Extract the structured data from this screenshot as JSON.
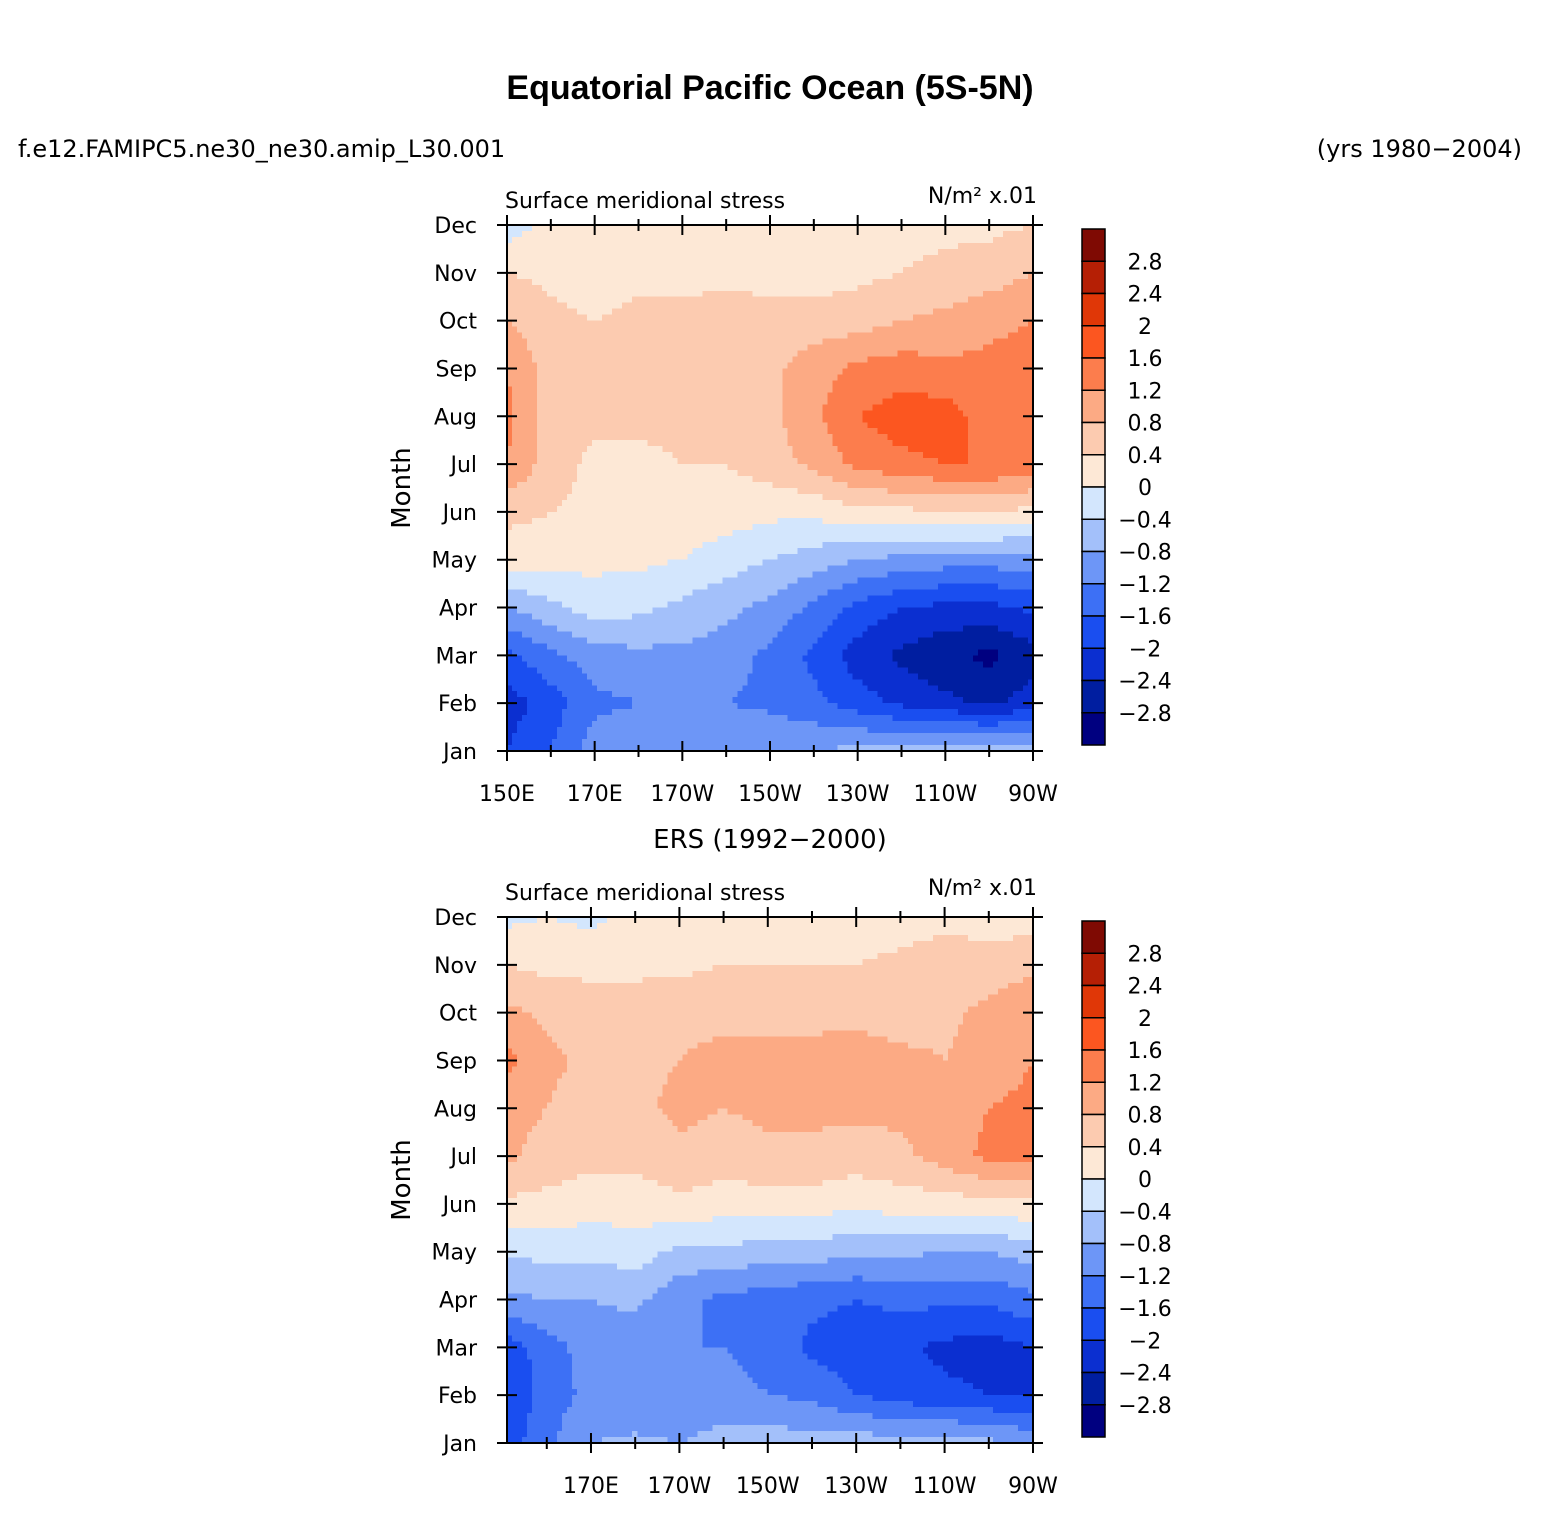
{
  "figure": {
    "title": "Equatorial Pacific Ocean (5S-5N)",
    "case_name": "f.e12.FAMIPC5.ne30_ne30.amip_L30.001",
    "years": "(yrs 1980−2004)",
    "second_panel_title": "ERS (1992−2000)"
  },
  "chart_data": [
    {
      "type": "heatmap",
      "panel": "model",
      "left_title": "Surface meridional stress",
      "right_title": "N/m² x.01",
      "ylabel": "Month",
      "y_categories": [
        "Jan",
        "Feb",
        "Mar",
        "Apr",
        "May",
        "Jun",
        "Jul",
        "Aug",
        "Sep",
        "Oct",
        "Nov",
        "Dec"
      ],
      "x_ticks": [
        "150E",
        "170E",
        "170W",
        "150W",
        "130W",
        "110W",
        "90W"
      ],
      "x_tick_lon": [
        150,
        170,
        190,
        210,
        230,
        250,
        270
      ],
      "x_range": [
        150,
        270
      ],
      "x_sample_lon": [
        150,
        160,
        170,
        180,
        190,
        200,
        210,
        220,
        230,
        240,
        250,
        260,
        270
      ],
      "z": [
        [
          -2.0,
          -1.6,
          -1.0,
          -0.9,
          -0.8,
          -0.8,
          -0.8,
          -0.8,
          -0.7,
          -0.6,
          -0.5,
          -0.5,
          -0.5
        ],
        [
          -2.2,
          -1.8,
          -1.3,
          -1.2,
          -1.2,
          -1.2,
          -1.3,
          -1.5,
          -1.8,
          -2.1,
          -2.3,
          -2.5,
          -2.2
        ],
        [
          -1.7,
          -1.3,
          -1.0,
          -0.9,
          -0.9,
          -1.0,
          -1.3,
          -1.7,
          -2.2,
          -2.5,
          -2.7,
          -2.9,
          -2.6
        ],
        [
          -0.8,
          -0.5,
          -0.2,
          -0.3,
          -0.5,
          -0.7,
          -0.9,
          -1.3,
          -1.7,
          -2.0,
          -2.1,
          -2.1,
          -1.9
        ],
        [
          0.2,
          0.2,
          0.1,
          0.1,
          0.0,
          -0.2,
          -0.4,
          -0.6,
          -0.8,
          -0.9,
          -1.0,
          -1.0,
          -1.0
        ],
        [
          0.5,
          0.4,
          0.3,
          0.3,
          0.2,
          0.2,
          0.1,
          0.1,
          0.3,
          0.3,
          0.4,
          0.4,
          0.3
        ],
        [
          1.2,
          0.6,
          0.3,
          0.3,
          0.4,
          0.4,
          0.6,
          0.9,
          1.3,
          1.5,
          1.6,
          1.6,
          1.4
        ],
        [
          1.3,
          0.6,
          0.5,
          0.5,
          0.5,
          0.6,
          0.7,
          1.1,
          1.6,
          1.8,
          1.8,
          1.4,
          1.6
        ],
        [
          1.2,
          0.6,
          0.5,
          0.6,
          0.6,
          0.6,
          0.7,
          1.0,
          1.3,
          1.4,
          1.3,
          1.3,
          1.4
        ],
        [
          0.8,
          0.5,
          0.4,
          0.5,
          0.6,
          0.6,
          0.6,
          0.6,
          0.6,
          0.8,
          0.9,
          1.1,
          1.2
        ],
        [
          0.4,
          0.3,
          0.2,
          0.3,
          0.2,
          0.3,
          0.2,
          0.2,
          0.3,
          0.4,
          0.5,
          0.6,
          0.8
        ],
        [
          -0.2,
          0.1,
          0.1,
          0.1,
          0.2,
          0.2,
          0.2,
          0.2,
          0.3,
          0.3,
          0.3,
          0.3,
          0.4
        ]
      ]
    },
    {
      "type": "heatmap",
      "panel": "observations",
      "left_title": "Surface meridional stress",
      "right_title": "N/m² x.01",
      "ylabel": "Month",
      "y_categories": [
        "Jan",
        "Feb",
        "Mar",
        "Apr",
        "May",
        "Jun",
        "Jul",
        "Aug",
        "Sep",
        "Oct",
        "Nov",
        "Dec"
      ],
      "x_ticks": [
        "170E",
        "170W",
        "150W",
        "130W",
        "110W",
        "90W"
      ],
      "x_tick_lon": [
        170,
        190,
        210,
        230,
        250,
        270
      ],
      "x_range": [
        151,
        270
      ],
      "x_sample_lon": [
        151,
        160,
        170,
        180,
        190,
        200,
        210,
        220,
        230,
        240,
        250,
        260,
        270
      ],
      "z": [
        [
          -1.8,
          -1.3,
          -0.8,
          -0.7,
          -0.8,
          -0.6,
          -0.6,
          -0.6,
          -0.6,
          -0.6,
          -0.6,
          -0.7,
          -0.9
        ],
        [
          -2.0,
          -1.4,
          -1.1,
          -1.2,
          -1.2,
          -1.1,
          -1.2,
          -1.3,
          -1.6,
          -1.8,
          -1.9,
          -2.0,
          -2.0
        ],
        [
          -1.8,
          -1.4,
          -1.0,
          -1.1,
          -1.2,
          -1.2,
          -1.3,
          -1.7,
          -1.8,
          -1.9,
          -2.1,
          -2.2,
          -2.0
        ],
        [
          -0.9,
          -0.8,
          -0.8,
          -0.7,
          -1.1,
          -1.3,
          -1.4,
          -1.5,
          -1.6,
          -1.5,
          -1.5,
          -1.5,
          -1.3
        ],
        [
          -0.3,
          -0.3,
          -0.3,
          -0.2,
          -0.5,
          -0.5,
          -0.6,
          -0.6,
          -0.7,
          -0.7,
          -0.8,
          -0.8,
          -0.6
        ],
        [
          0.3,
          0.3,
          0.2,
          0.2,
          0.3,
          0.2,
          0.2,
          0.2,
          0.1,
          0.2,
          0.2,
          0.3,
          0.3
        ],
        [
          0.9,
          0.6,
          0.5,
          0.5,
          0.7,
          0.6,
          0.7,
          0.7,
          0.6,
          0.7,
          1.0,
          1.3,
          1.3
        ],
        [
          1.0,
          0.8,
          0.6,
          0.7,
          0.9,
          0.8,
          0.9,
          0.9,
          0.9,
          0.9,
          1.0,
          1.2,
          1.3
        ],
        [
          1.3,
          0.9,
          0.7,
          0.7,
          0.8,
          0.9,
          0.9,
          0.9,
          1.0,
          0.9,
          0.8,
          1.0,
          1.2
        ],
        [
          0.9,
          0.7,
          0.6,
          0.6,
          0.7,
          0.7,
          0.7,
          0.7,
          0.7,
          0.6,
          0.7,
          0.9,
          1.1
        ],
        [
          0.4,
          0.3,
          0.3,
          0.3,
          0.3,
          0.4,
          0.4,
          0.4,
          0.4,
          0.5,
          0.6,
          0.6,
          0.7
        ],
        [
          -0.1,
          0.0,
          -0.1,
          0.1,
          0.0,
          0.1,
          0.1,
          0.2,
          0.2,
          0.2,
          0.3,
          0.2,
          0.2
        ]
      ]
    }
  ],
  "colorbar": {
    "labels": [
      "2.8",
      "2.4",
      "2",
      "1.6",
      "1.2",
      "0.8",
      "0.4",
      "0",
      "−0.4",
      "−0.8",
      "−1.2",
      "−1.6",
      "−2",
      "−2.4",
      "−2.8"
    ],
    "levels": [
      -2.8,
      -2.4,
      -2.0,
      -1.6,
      -1.2,
      -0.8,
      -0.4,
      0,
      0.4,
      0.8,
      1.2,
      1.6,
      2.0,
      2.4,
      2.8
    ],
    "colors": [
      "#000080",
      "#001ea0",
      "#0b2fd0",
      "#1a4ef0",
      "#3d70f5",
      "#6d96f7",
      "#a3c0fa",
      "#d3e6fd",
      "#fde8d6",
      "#fccbb0",
      "#fcaa84",
      "#fc7d4d",
      "#fc5620",
      "#e03707",
      "#b51f05",
      "#7f0a03"
    ]
  }
}
